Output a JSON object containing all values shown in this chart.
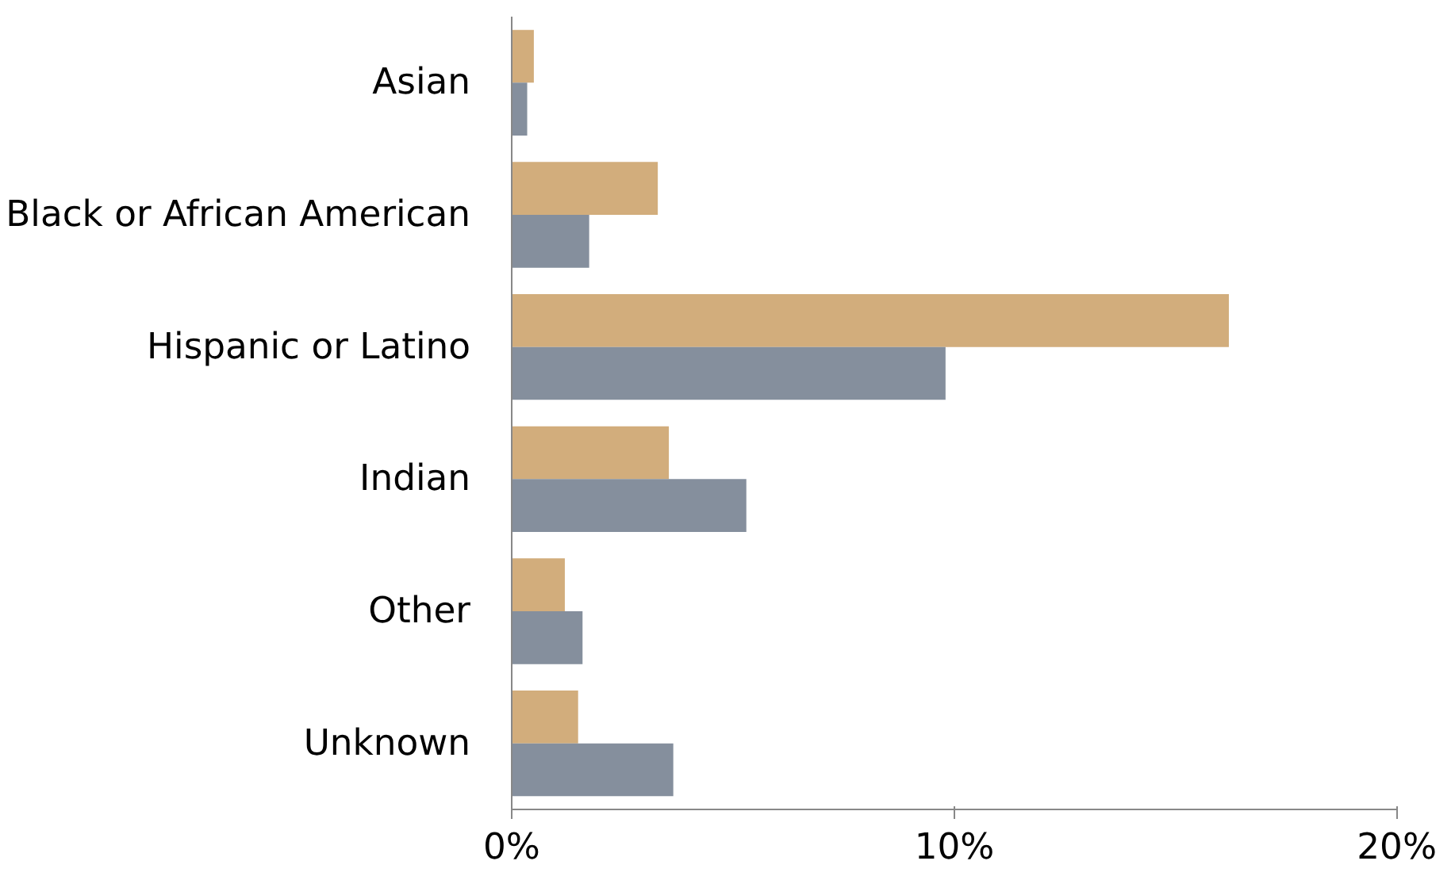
{
  "chart_data": {
    "type": "bar",
    "orientation": "horizontal",
    "categories": [
      "Asian",
      "Black or African American",
      "Hispanic or Latino",
      "Indian",
      "Other",
      "Unknown"
    ],
    "series": [
      {
        "color": "#d2ad7c",
        "values": [
          0.5,
          3.3,
          16.2,
          3.55,
          1.2,
          1.5
        ]
      },
      {
        "color": "#858f9d",
        "values": [
          0.35,
          1.75,
          9.8,
          5.3,
          1.6,
          3.65
        ]
      }
    ],
    "xlim": [
      0,
      20
    ],
    "xticks": [
      {
        "value": 0,
        "label": "0%"
      },
      {
        "value": 10,
        "label": "10%"
      },
      {
        "value": 20,
        "label": "20%"
      }
    ],
    "grid": false
  }
}
